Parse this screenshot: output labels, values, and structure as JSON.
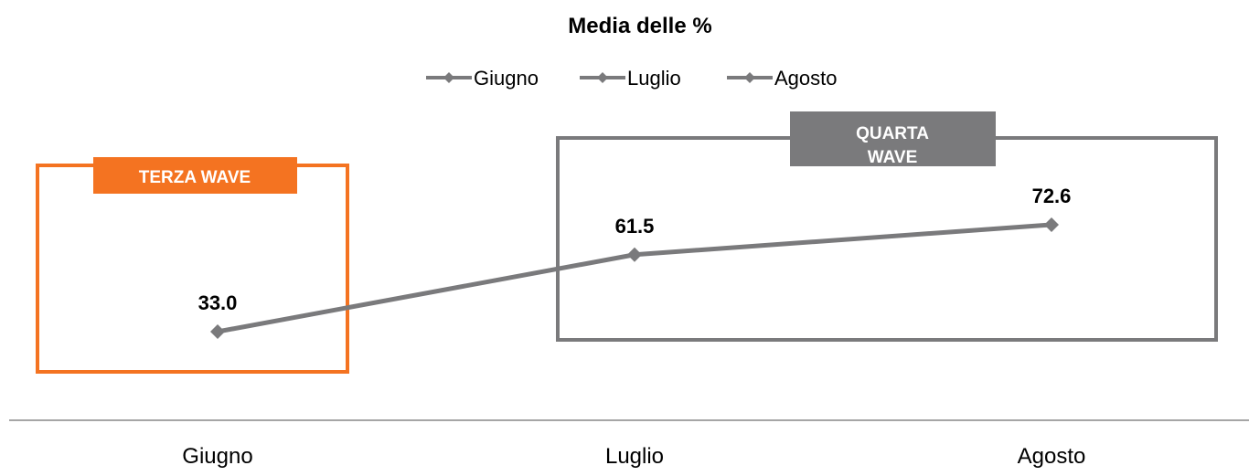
{
  "chart_data": {
    "type": "line",
    "title": "Media delle %",
    "categories": [
      "Giugno",
      "Luglio",
      "Agosto"
    ],
    "series": [
      {
        "name": "",
        "values": [
          33.0,
          61.5,
          72.6
        ],
        "color": "#7a7a7c"
      }
    ],
    "legend": {
      "entries": [
        "Giugno",
        "Luglio",
        "Agosto"
      ],
      "placement": "top"
    },
    "data_labels": [
      "33.0",
      "61.5",
      "72.6"
    ],
    "ylim": [
      0,
      100
    ],
    "grid": false,
    "annotations": [
      {
        "label": "TERZA WAVE",
        "color": "#f47321",
        "covers": [
          "Giugno"
        ]
      },
      {
        "label": "QUARTA WAVE",
        "color": "#7a7a7c",
        "covers": [
          "Luglio",
          "Agosto"
        ]
      }
    ]
  }
}
